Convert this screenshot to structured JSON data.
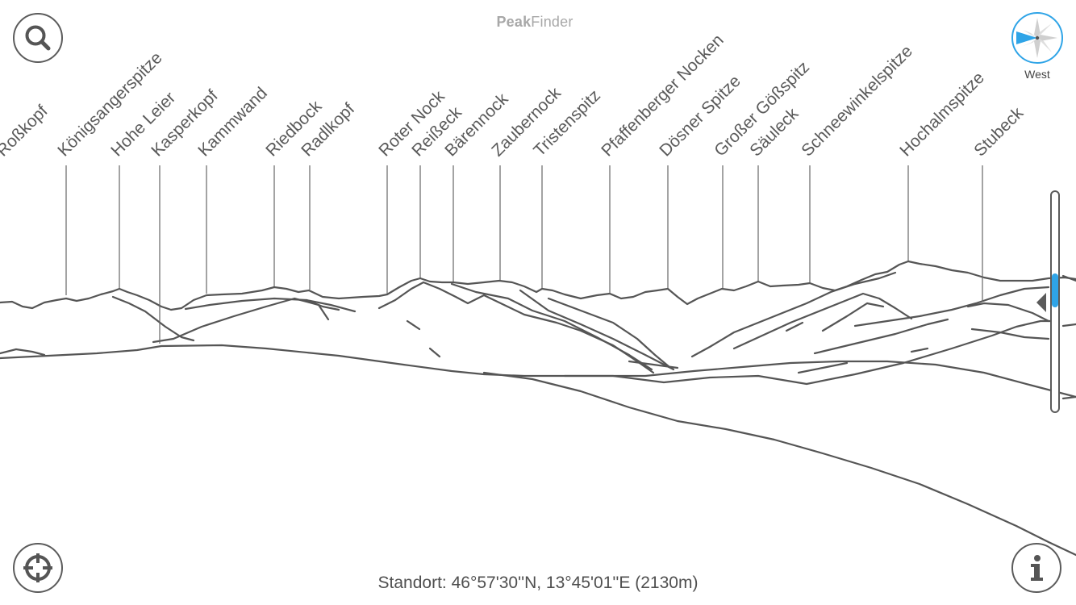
{
  "app": {
    "title_bold": "Peak",
    "title_light": "Finder"
  },
  "compass": {
    "direction_label": "West",
    "needle_color": "#2fa4e7"
  },
  "buttons": {
    "search_icon": "search-icon",
    "locate_icon": "crosshair-icon",
    "info_icon": "info-icon"
  },
  "location": {
    "text": "Standort: 46°57'30''N, 13°45'01''E (2130m)"
  },
  "zoom": {
    "level": 0.44
  },
  "peaks": [
    {
      "name": "Roßkopf"
    },
    {
      "name": "Königsangerspitze"
    },
    {
      "name": "Hohe Leier"
    },
    {
      "name": "Kasperkopf"
    },
    {
      "name": "Kammwand"
    },
    {
      "name": "Riedbock"
    },
    {
      "name": "Radlkopf"
    },
    {
      "name": "Roter Nock"
    },
    {
      "name": "Reißeck"
    },
    {
      "name": "Bärennock"
    },
    {
      "name": "Zaubernock"
    },
    {
      "name": "Tristenspitz"
    },
    {
      "name": "Pfaffenberger Nocken"
    },
    {
      "name": "Dösner Spitze"
    },
    {
      "name": "Großer Gößspitz"
    },
    {
      "name": "Säuleck"
    },
    {
      "name": "Schneewinkelspitze"
    },
    {
      "name": "Hochalmspitze"
    },
    {
      "name": "Stubeck"
    }
  ]
}
